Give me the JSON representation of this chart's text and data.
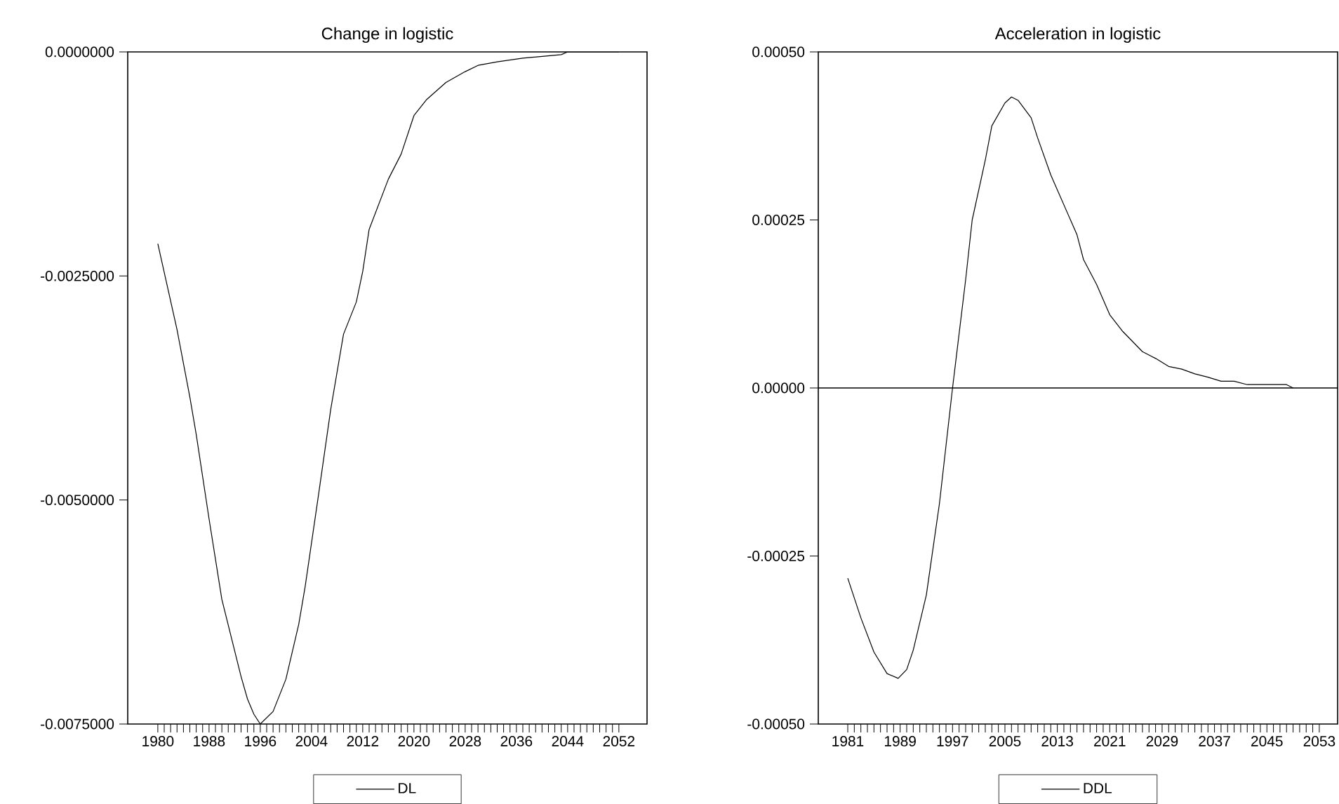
{
  "chart_data": [
    {
      "type": "line",
      "title": "Change in logistic",
      "legend": "bottom",
      "series": [
        {
          "name": "DL",
          "color": "#000000",
          "x": [
            1980,
            1983,
            1985,
            1986,
            1988,
            1990,
            1993,
            1994,
            1995,
            1996,
            1998,
            2000,
            2002,
            2003,
            2005,
            2007,
            2009,
            2011,
            2012,
            2013,
            2016,
            2018,
            2020,
            2022,
            2025,
            2028,
            2030,
            2033,
            2037,
            2043,
            2044,
            2052
          ],
          "values": [
            -0.00214,
            -0.0031,
            -0.00385,
            -0.00427,
            -0.00521,
            -0.00611,
            -0.00697,
            -0.00722,
            -0.00739,
            -0.0075,
            -0.00736,
            -0.007,
            -0.00639,
            -0.00597,
            -0.00499,
            -0.00399,
            -0.00315,
            -0.00279,
            -0.00245,
            -0.00198,
            -0.00142,
            -0.00114,
            -0.00071,
            -0.00053,
            -0.00034,
            -0.00022,
            -0.00015,
            -0.00011,
            -7e-05,
            -3e-05,
            0,
            0
          ]
        }
      ],
      "xlim": [
        1975.3,
        2056.4
      ],
      "ylim": [
        -0.0075,
        0
      ],
      "yticks": [
        {
          "value": -0.0075,
          "label": "-0.0075000"
        },
        {
          "value": -0.005,
          "label": "-0.0050000"
        },
        {
          "value": -0.0025,
          "label": "-0.0025000"
        },
        {
          "value": 0,
          "label": "0.0000000"
        }
      ],
      "xticks": [
        1980,
        {
          "value": 1981,
          "label": null
        },
        {
          "value": 1982,
          "label": null
        },
        {
          "value": 1983,
          "label": null
        },
        {
          "value": 1984,
          "label": null
        },
        {
          "value": 1985,
          "label": null
        },
        {
          "value": 1986,
          "label": null
        },
        {
          "value": 1987,
          "label": null
        },
        1988,
        {
          "value": 1989,
          "label": null
        },
        {
          "value": 1990,
          "label": null
        },
        {
          "value": 1991,
          "label": null
        },
        {
          "value": 1992,
          "label": null
        },
        {
          "value": 1993,
          "label": null
        },
        {
          "value": 1994,
          "label": null
        },
        {
          "value": 1995,
          "label": null
        },
        1996,
        {
          "value": 1997,
          "label": null
        },
        {
          "value": 1998,
          "label": null
        },
        {
          "value": 1999,
          "label": null
        },
        {
          "value": 2000,
          "label": null
        },
        {
          "value": 2001,
          "label": null
        },
        {
          "value": 2002,
          "label": null
        },
        {
          "value": 2003,
          "label": null
        },
        2004,
        {
          "value": 2005,
          "label": null
        },
        {
          "value": 2006,
          "label": null
        },
        {
          "value": 2007,
          "label": null
        },
        {
          "value": 2008,
          "label": null
        },
        {
          "value": 2009,
          "label": null
        },
        {
          "value": 2010,
          "label": null
        },
        {
          "value": 2011,
          "label": null
        },
        2012,
        {
          "value": 2013,
          "label": null
        },
        {
          "value": 2014,
          "label": null
        },
        {
          "value": 2015,
          "label": null
        },
        {
          "value": 2016,
          "label": null
        },
        {
          "value": 2017,
          "label": null
        },
        {
          "value": 2018,
          "label": null
        },
        {
          "value": 2019,
          "label": null
        },
        2020,
        {
          "value": 2021,
          "label": null
        },
        {
          "value": 2022,
          "label": null
        },
        {
          "value": 2023,
          "label": null
        },
        {
          "value": 2024,
          "label": null
        },
        {
          "value": 2025,
          "label": null
        },
        {
          "value": 2026,
          "label": null
        },
        {
          "value": 2027,
          "label": null
        },
        2028,
        {
          "value": 2029,
          "label": null
        },
        {
          "value": 2030,
          "label": null
        },
        {
          "value": 2031,
          "label": null
        },
        {
          "value": 2032,
          "label": null
        },
        {
          "value": 2033,
          "label": null
        },
        {
          "value": 2034,
          "label": null
        },
        {
          "value": 2035,
          "label": null
        },
        2036,
        {
          "value": 2037,
          "label": null
        },
        {
          "value": 2038,
          "label": null
        },
        {
          "value": 2039,
          "label": null
        },
        {
          "value": 2040,
          "label": null
        },
        {
          "value": 2041,
          "label": null
        },
        {
          "value": 2042,
          "label": null
        },
        {
          "value": 2043,
          "label": null
        },
        2044,
        {
          "value": 2045,
          "label": null
        },
        {
          "value": 2046,
          "label": null
        },
        {
          "value": 2047,
          "label": null
        },
        {
          "value": 2048,
          "label": null
        },
        {
          "value": 2049,
          "label": null
        },
        {
          "value": 2050,
          "label": null
        },
        {
          "value": 2051,
          "label": null
        },
        2052
      ]
    },
    {
      "type": "line",
      "title": "Acceleration in logistic",
      "legend": "bottom",
      "series": [
        {
          "name": "DDL",
          "color": "#000000",
          "x": [
            1981,
            1983,
            1985,
            1987,
            1988.7,
            1990,
            1991,
            1993,
            1995,
            1997,
            1999,
            2000,
            2002,
            2003,
            2005,
            2006,
            2007,
            2009,
            2010,
            2012,
            2016,
            2017,
            2019,
            2021,
            2023,
            2026,
            2028,
            2030,
            2032,
            2034,
            2036,
            2038,
            2040,
            2042,
            2048,
            2049
          ],
          "values": [
            -0.000283,
            -0.000342,
            -0.000393,
            -0.000425,
            -0.000432,
            -0.000419,
            -0.00039,
            -0.000308,
            -0.000172,
            0,
            0.000161,
            0.00025,
            0.000339,
            0.00039,
            0.000424,
            0.000433,
            0.000428,
            0.000402,
            0.000372,
            0.000317,
            0.000228,
            0.000191,
            0.000154,
            0.000109,
            8.4e-05,
            5.4e-05,
            4.4e-05,
            3.2e-05,
            2.8e-05,
            2.1e-05,
            1.6e-05,
            1e-05,
            1e-05,
            5e-06,
            5e-06,
            0
          ]
        }
      ],
      "xlim": [
        1976.5,
        2055.8
      ],
      "ylim": [
        -0.0005,
        0.0005
      ],
      "ref_lines": [
        {
          "axis": "y",
          "value": 0,
          "color": "#000000"
        }
      ],
      "yticks": [
        {
          "value": -0.0005,
          "label": "-0.00050"
        },
        {
          "value": -0.00025,
          "label": "-0.00025"
        },
        {
          "value": 0,
          "label": "0.00000"
        },
        {
          "value": 0.00025,
          "label": "0.00025"
        },
        {
          "value": 0.0005,
          "label": "0.00050"
        }
      ],
      "xticks": [
        1981,
        {
          "value": 1982,
          "label": null
        },
        {
          "value": 1983,
          "label": null
        },
        {
          "value": 1984,
          "label": null
        },
        {
          "value": 1985,
          "label": null
        },
        {
          "value": 1986,
          "label": null
        },
        {
          "value": 1987,
          "label": null
        },
        {
          "value": 1988,
          "label": null
        },
        1989,
        {
          "value": 1990,
          "label": null
        },
        {
          "value": 1991,
          "label": null
        },
        {
          "value": 1992,
          "label": null
        },
        {
          "value": 1993,
          "label": null
        },
        {
          "value": 1994,
          "label": null
        },
        {
          "value": 1995,
          "label": null
        },
        {
          "value": 1996,
          "label": null
        },
        1997,
        {
          "value": 1998,
          "label": null
        },
        {
          "value": 1999,
          "label": null
        },
        {
          "value": 2000,
          "label": null
        },
        {
          "value": 2001,
          "label": null
        },
        {
          "value": 2002,
          "label": null
        },
        {
          "value": 2003,
          "label": null
        },
        {
          "value": 2004,
          "label": null
        },
        2005,
        {
          "value": 2006,
          "label": null
        },
        {
          "value": 2007,
          "label": null
        },
        {
          "value": 2008,
          "label": null
        },
        {
          "value": 2009,
          "label": null
        },
        {
          "value": 2010,
          "label": null
        },
        {
          "value": 2011,
          "label": null
        },
        {
          "value": 2012,
          "label": null
        },
        2013,
        {
          "value": 2014,
          "label": null
        },
        {
          "value": 2015,
          "label": null
        },
        {
          "value": 2016,
          "label": null
        },
        {
          "value": 2017,
          "label": null
        },
        {
          "value": 2018,
          "label": null
        },
        {
          "value": 2019,
          "label": null
        },
        {
          "value": 2020,
          "label": null
        },
        2021,
        {
          "value": 2022,
          "label": null
        },
        {
          "value": 2023,
          "label": null
        },
        {
          "value": 2024,
          "label": null
        },
        {
          "value": 2025,
          "label": null
        },
        {
          "value": 2026,
          "label": null
        },
        {
          "value": 2027,
          "label": null
        },
        {
          "value": 2028,
          "label": null
        },
        2029,
        {
          "value": 2030,
          "label": null
        },
        {
          "value": 2031,
          "label": null
        },
        {
          "value": 2032,
          "label": null
        },
        {
          "value": 2033,
          "label": null
        },
        {
          "value": 2034,
          "label": null
        },
        {
          "value": 2035,
          "label": null
        },
        {
          "value": 2036,
          "label": null
        },
        2037,
        {
          "value": 2038,
          "label": null
        },
        {
          "value": 2039,
          "label": null
        },
        {
          "value": 2040,
          "label": null
        },
        {
          "value": 2041,
          "label": null
        },
        {
          "value": 2042,
          "label": null
        },
        {
          "value": 2043,
          "label": null
        },
        {
          "value": 2044,
          "label": null
        },
        2045,
        {
          "value": 2046,
          "label": null
        },
        {
          "value": 2047,
          "label": null
        },
        {
          "value": 2048,
          "label": null
        },
        {
          "value": 2049,
          "label": null
        },
        {
          "value": 2050,
          "label": null
        },
        {
          "value": 2051,
          "label": null
        },
        {
          "value": 2052,
          "label": null
        },
        2053
      ]
    }
  ]
}
